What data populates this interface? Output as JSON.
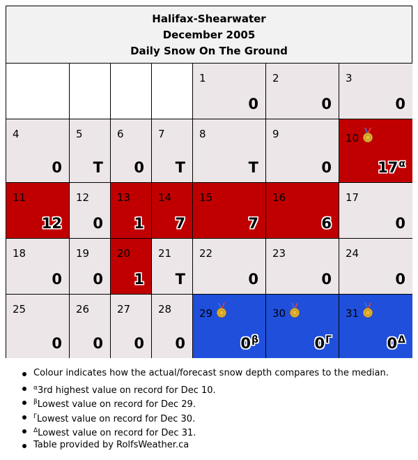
{
  "header": {
    "station": "Halifax-Shearwater",
    "month": "December 2005",
    "subtitle": "Daily Snow On The Ground"
  },
  "colors": {
    "normal": "#ede6e8",
    "above_median": "#c00000",
    "record_low": "#1f4fdb",
    "blank": "#ffffff"
  },
  "days": [
    {
      "day": "1",
      "value": "0",
      "status": "normal"
    },
    {
      "day": "2",
      "value": "0",
      "status": "normal"
    },
    {
      "day": "3",
      "value": "0",
      "status": "normal"
    },
    {
      "day": "4",
      "value": "0",
      "status": "normal"
    },
    {
      "day": "5",
      "value": "T",
      "status": "normal"
    },
    {
      "day": "6",
      "value": "0",
      "status": "normal"
    },
    {
      "day": "7",
      "value": "T",
      "status": "normal"
    },
    {
      "day": "8",
      "value": "T",
      "status": "normal"
    },
    {
      "day": "9",
      "value": "0",
      "status": "normal"
    },
    {
      "day": "10",
      "value": "17",
      "mark": "α",
      "status": "above",
      "medal": "medal-icon"
    },
    {
      "day": "11",
      "value": "12",
      "status": "above"
    },
    {
      "day": "12",
      "value": "0",
      "status": "normal"
    },
    {
      "day": "13",
      "value": "1",
      "status": "above"
    },
    {
      "day": "14",
      "value": "7",
      "status": "above"
    },
    {
      "day": "15",
      "value": "7",
      "status": "above"
    },
    {
      "day": "16",
      "value": "6",
      "status": "above"
    },
    {
      "day": "17",
      "value": "0",
      "status": "normal"
    },
    {
      "day": "18",
      "value": "0",
      "status": "normal"
    },
    {
      "day": "19",
      "value": "0",
      "status": "normal"
    },
    {
      "day": "20",
      "value": "1",
      "status": "above"
    },
    {
      "day": "21",
      "value": "T",
      "status": "normal"
    },
    {
      "day": "22",
      "value": "0",
      "status": "normal"
    },
    {
      "day": "23",
      "value": "0",
      "status": "normal"
    },
    {
      "day": "24",
      "value": "0",
      "status": "normal"
    },
    {
      "day": "25",
      "value": "0",
      "status": "normal"
    },
    {
      "day": "26",
      "value": "0",
      "status": "normal"
    },
    {
      "day": "27",
      "value": "0",
      "status": "normal"
    },
    {
      "day": "28",
      "value": "0",
      "status": "normal"
    },
    {
      "day": "29",
      "value": "0",
      "mark": "β",
      "status": "record_low",
      "medal": "medal-icon"
    },
    {
      "day": "30",
      "value": "0",
      "mark": "Γ",
      "status": "record_low",
      "medal": "medal-icon"
    },
    {
      "day": "31",
      "value": "0",
      "mark": "Δ",
      "status": "record_low",
      "medal": "medal-icon"
    }
  ],
  "notes": [
    {
      "mark": "",
      "text": "Colour indicates how the actual/forecast snow depth compares to the median."
    },
    {
      "mark": "α",
      "text": "3rd highest value on record for Dec 10."
    },
    {
      "mark": "β",
      "text": "Lowest value on record for Dec 29."
    },
    {
      "mark": "Γ",
      "text": "Lowest value on record for Dec 30."
    },
    {
      "mark": "Δ",
      "text": "Lowest value on record for Dec 31."
    },
    {
      "mark": "",
      "text": "Table provided by RolfsWeather.ca"
    }
  ]
}
